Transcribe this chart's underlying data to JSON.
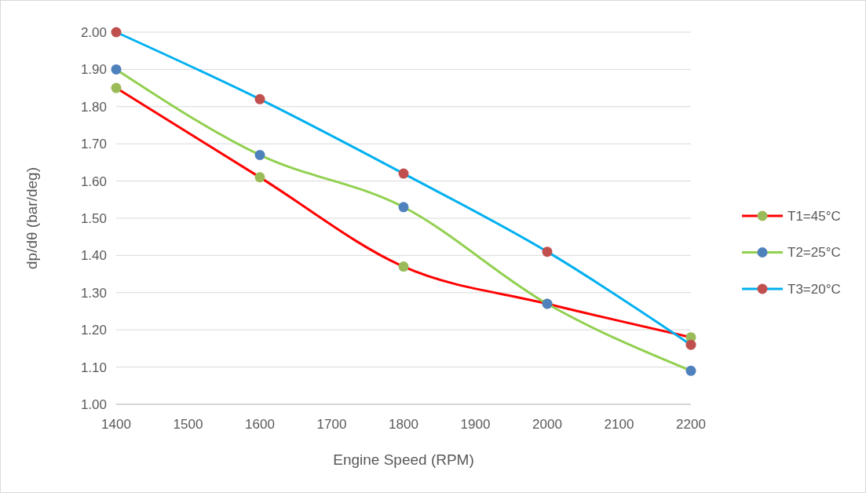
{
  "chart_data": {
    "type": "line",
    "xlabel": "Engine Speed (RPM)",
    "ylabel": "dp/dθ (bar/deg)",
    "x": [
      1400,
      1600,
      1800,
      2000,
      2200
    ],
    "xlim": [
      1400,
      2200
    ],
    "xticks": [
      1400,
      1500,
      1600,
      1700,
      1800,
      1900,
      2000,
      2100,
      2200
    ],
    "ylim": [
      1.0,
      2.0
    ],
    "yticks": [
      {
        "value": 1.0,
        "label": "1.00"
      },
      {
        "value": 1.1,
        "label": "1.10"
      },
      {
        "value": 1.2,
        "label": "1.20"
      },
      {
        "value": 1.3,
        "label": "1.30"
      },
      {
        "value": 1.4,
        "label": "1.40"
      },
      {
        "value": 1.5,
        "label": "1.50"
      },
      {
        "value": 1.6,
        "label": "1.60"
      },
      {
        "value": 1.7,
        "label": "1.70"
      },
      {
        "value": 1.8,
        "label": "1.80"
      },
      {
        "value": 1.9,
        "label": "1.90"
      },
      {
        "value": 2.0,
        "label": "2.00"
      }
    ],
    "grid": "y",
    "legend": "right",
    "marker": "circle",
    "line_style": "solid",
    "series": [
      {
        "name": "T1=45°C",
        "color": "#ff0000",
        "colors": [
          "#9bbb59",
          "#9bbb59",
          "#9bbb59",
          "#9bbb59",
          "#9bbb59"
        ],
        "values": [
          1.85,
          1.61,
          1.37,
          1.27,
          1.18
        ]
      },
      {
        "name": "T2=25°C",
        "color": "#92d050",
        "colors": [
          "#4f81bd",
          "#4f81bd",
          "#4f81bd",
          "#4f81bd",
          "#4f81bd"
        ],
        "values": [
          1.9,
          1.67,
          1.53,
          1.27,
          1.09
        ]
      },
      {
        "name": "T3=20°C",
        "color": "#00b0f0",
        "colors": [
          "#c0504d",
          "#c0504d",
          "#c0504d",
          "#c0504d",
          "#c0504d"
        ],
        "values": [
          2.0,
          1.82,
          1.62,
          1.41,
          1.16
        ]
      }
    ]
  }
}
